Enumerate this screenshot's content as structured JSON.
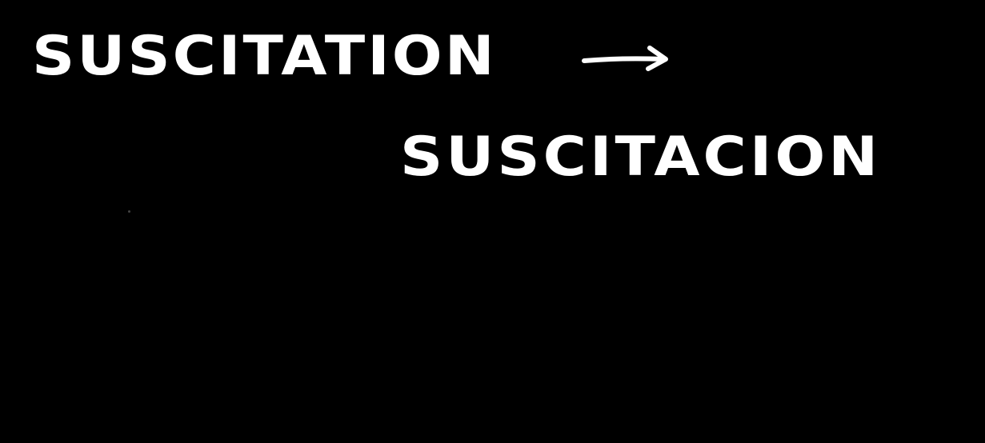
{
  "note": {
    "source_word": "SUSCITATION",
    "target_word": "SUSCITACION",
    "arrow_icon": "right-arrow-icon"
  },
  "colors": {
    "background": "#000000",
    "ink": "#ffffff"
  }
}
